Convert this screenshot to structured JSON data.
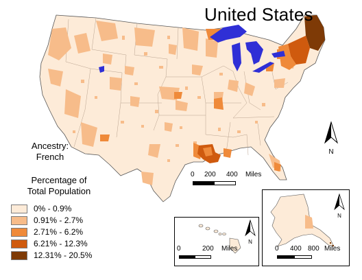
{
  "title": "United States",
  "ancestry": {
    "line1": "Ancestry:",
    "line2": "French"
  },
  "legend": {
    "heading1": "Percentage of",
    "heading2": "Total Population",
    "classes": [
      {
        "label": "0% - 0.9%",
        "color": "#fdebd8"
      },
      {
        "label": "0.91% - 2.7%",
        "color": "#f7bc8a"
      },
      {
        "label": "2.71% - 6.2%",
        "color": "#ef8a3a"
      },
      {
        "label": "6.21% - 12.3%",
        "color": "#cf5a0e"
      },
      {
        "label": "12.31% - 20.5%",
        "color": "#7e3a06"
      }
    ]
  },
  "water_color": "#2f2fd6",
  "main_scale": {
    "tick0": "0",
    "tick1": "200",
    "tick2": "400",
    "unit": "Miles"
  },
  "hawaii_scale": {
    "tick0": "0",
    "tick1": "200",
    "unit": "Miles"
  },
  "alaska_scale": {
    "tick0": "0",
    "tick1": "400",
    "tick2": "800",
    "unit": "Miles"
  },
  "north_label": "N"
}
